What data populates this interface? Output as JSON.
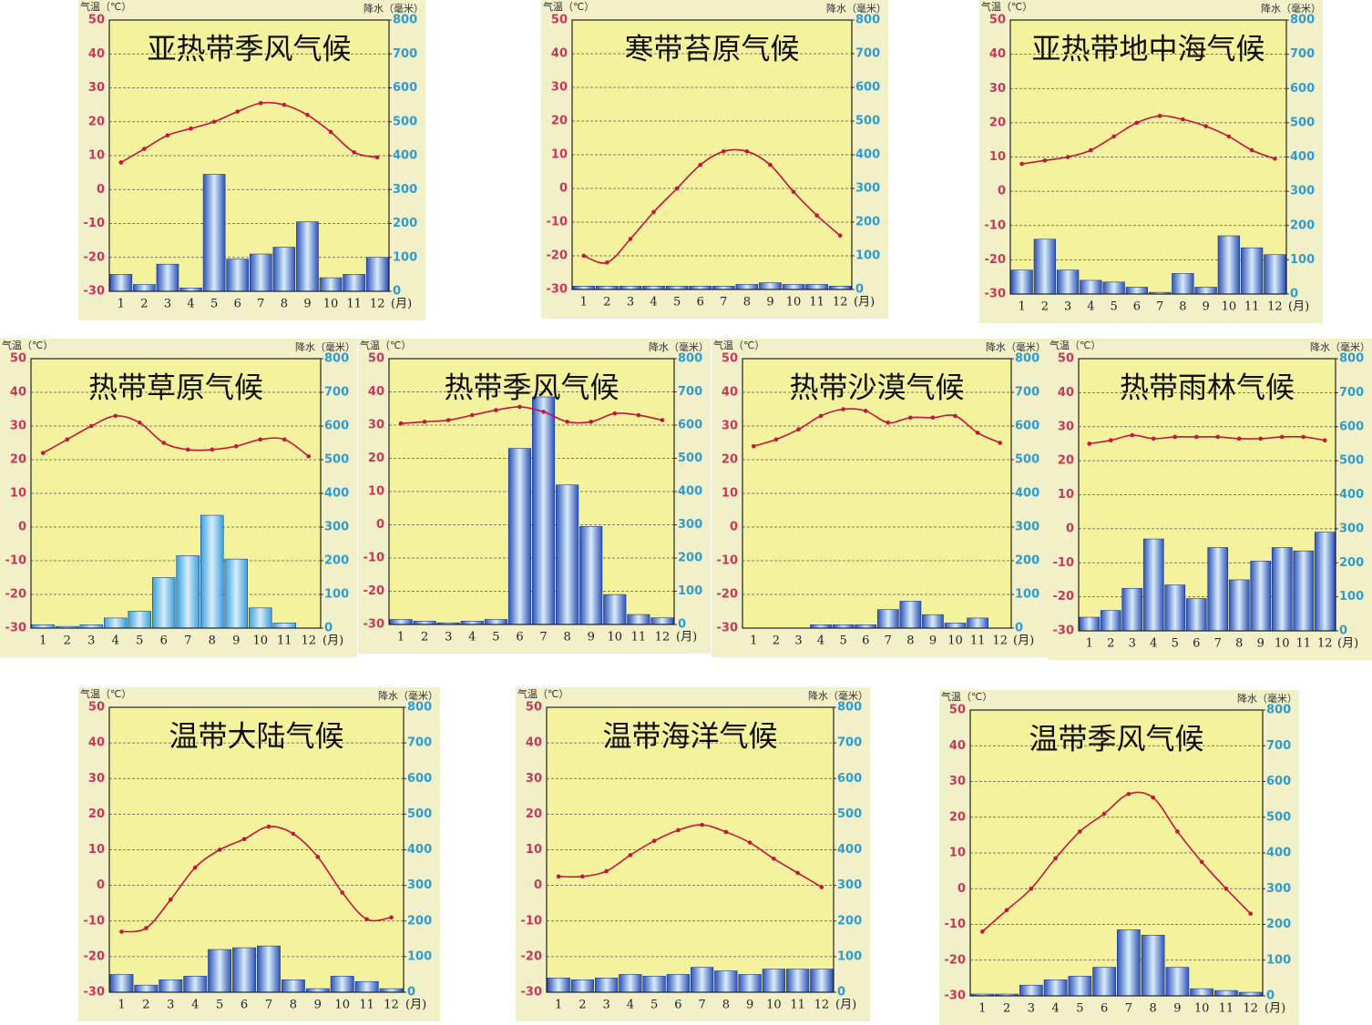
{
  "chart_data": [
    {
      "type": "combo",
      "title": "亚热带季风气候",
      "y_label": "气温（℃）",
      "y2_label": "降水（毫米）",
      "x_unit": "(月)",
      "categories": [
        "1",
        "2",
        "3",
        "4",
        "5",
        "6",
        "7",
        "8",
        "9",
        "10",
        "11",
        "12"
      ],
      "ylim": [
        -30,
        50
      ],
      "yticks": [
        -30,
        -20,
        -10,
        0,
        10,
        20,
        30,
        40,
        50
      ],
      "y2lim": [
        0,
        800
      ],
      "y2ticks": [
        0,
        100,
        200,
        300,
        400,
        500,
        600,
        700,
        800
      ],
      "grid": true,
      "series": [
        {
          "type": "line",
          "color": "#c8143c",
          "values": [
            8,
            12,
            16,
            18,
            20,
            23,
            25.5,
            25,
            22,
            17,
            11,
            9.5
          ]
        },
        {
          "type": "bar",
          "axis": "y2",
          "color": "#2d52b8",
          "values": [
            50,
            20,
            80,
            10,
            345,
            95,
            110,
            130,
            205,
            40,
            50,
            100
          ]
        }
      ]
    },
    {
      "type": "combo",
      "title": "寒带苔原气候",
      "y_label": "气温（℃）",
      "y2_label": "降水（毫米）",
      "x_unit": "(月)",
      "categories": [
        "1",
        "2",
        "3",
        "4",
        "5",
        "6",
        "7",
        "8",
        "9",
        "10",
        "11",
        "12"
      ],
      "ylim": [
        -30,
        50
      ],
      "yticks": [
        -30,
        -20,
        -10,
        0,
        10,
        20,
        30,
        40,
        50
      ],
      "y2lim": [
        0,
        800
      ],
      "y2ticks": [
        0,
        100,
        200,
        300,
        400,
        500,
        600,
        700,
        800
      ],
      "grid": true,
      "series": [
        {
          "type": "line",
          "color": "#c8143c",
          "values": [
            -20,
            -22,
            -15,
            -7,
            0,
            7,
            11,
            11,
            7,
            -1,
            -8,
            -14
          ]
        },
        {
          "type": "bar",
          "axis": "y2",
          "color": "#2d52b8",
          "values": [
            10,
            10,
            10,
            10,
            10,
            10,
            10,
            15,
            20,
            15,
            15,
            10
          ]
        }
      ]
    },
    {
      "type": "combo",
      "title": "亚热带地中海气候",
      "y_label": "气温（℃）",
      "y2_label": "降水（毫米）",
      "x_unit": "(月)",
      "categories": [
        "1",
        "2",
        "3",
        "4",
        "5",
        "6",
        "7",
        "8",
        "9",
        "10",
        "11",
        "12"
      ],
      "ylim": [
        -30,
        50
      ],
      "yticks": [
        -30,
        -20,
        -10,
        0,
        10,
        20,
        30,
        40,
        50
      ],
      "y2lim": [
        0,
        800
      ],
      "y2ticks": [
        0,
        100,
        200,
        300,
        400,
        500,
        600,
        700,
        800
      ],
      "grid": true,
      "series": [
        {
          "type": "line",
          "color": "#c8143c",
          "values": [
            8,
            9,
            10,
            12,
            16,
            20,
            22,
            21,
            19,
            16,
            12,
            9.5
          ]
        },
        {
          "type": "bar",
          "axis": "y2",
          "color": "#2d52b8",
          "values": [
            70,
            160,
            70,
            40,
            35,
            20,
            5,
            60,
            20,
            170,
            135,
            115
          ]
        }
      ]
    },
    {
      "type": "combo",
      "title": "热带草原气候",
      "y_label": "气温（℃）",
      "y2_label": "降水（毫米）",
      "x_unit": "(月)",
      "categories": [
        "1",
        "2",
        "3",
        "4",
        "5",
        "6",
        "7",
        "8",
        "9",
        "10",
        "11",
        "12"
      ],
      "ylim": [
        -30,
        50
      ],
      "yticks": [
        -30,
        -20,
        -10,
        0,
        10,
        20,
        30,
        40,
        50
      ],
      "y2lim": [
        0,
        800
      ],
      "y2ticks": [
        0,
        100,
        200,
        300,
        400,
        500,
        600,
        700,
        800
      ],
      "grid": true,
      "series": [
        {
          "type": "line",
          "color": "#c8143c",
          "values": [
            22,
            26,
            30,
            33,
            31,
            25,
            23,
            23,
            24,
            26,
            26,
            21
          ]
        },
        {
          "type": "bar",
          "axis": "y2",
          "color": "#38a0dc",
          "values": [
            10,
            5,
            10,
            30,
            50,
            150,
            215,
            335,
            205,
            60,
            15,
            0
          ]
        }
      ]
    },
    {
      "type": "combo",
      "title": "热带季风气候",
      "y_label": "气温（℃）",
      "y2_label": "降水（毫米）",
      "x_unit": "(月)",
      "categories": [
        "1",
        "2",
        "3",
        "4",
        "5",
        "6",
        "7",
        "8",
        "9",
        "10",
        "11",
        "12"
      ],
      "ylim": [
        -30,
        50
      ],
      "yticks": [
        -30,
        -20,
        -10,
        0,
        10,
        20,
        30,
        40,
        50
      ],
      "y2lim": [
        0,
        800
      ],
      "y2ticks": [
        0,
        100,
        200,
        300,
        400,
        500,
        600,
        700,
        800
      ],
      "grid": true,
      "series": [
        {
          "type": "line",
          "color": "#c8143c",
          "values": [
            30.5,
            31,
            31.5,
            33,
            34.5,
            35.5,
            34,
            31,
            31,
            33.5,
            33,
            31.5
          ]
        },
        {
          "type": "bar",
          "axis": "y2",
          "color": "#2d52b8",
          "values": [
            15,
            10,
            5,
            10,
            15,
            530,
            685,
            420,
            295,
            90,
            30,
            20
          ]
        }
      ]
    },
    {
      "type": "combo",
      "title": "热带沙漠气候",
      "y_label": "气温（℃）",
      "y2_label": "降水（毫米）",
      "x_unit": "(月)",
      "categories": [
        "1",
        "2",
        "3",
        "4",
        "5",
        "6",
        "7",
        "8",
        "9",
        "10",
        "11",
        "12"
      ],
      "ylim": [
        -30,
        50
      ],
      "yticks": [
        -30,
        -20,
        -10,
        0,
        10,
        20,
        30,
        40,
        50
      ],
      "y2lim": [
        0,
        800
      ],
      "y2ticks": [
        0,
        100,
        200,
        300,
        400,
        500,
        600,
        700,
        800
      ],
      "grid": true,
      "series": [
        {
          "type": "line",
          "color": "#c8143c",
          "values": [
            24,
            26,
            29,
            33,
            35,
            34.5,
            31,
            32.5,
            32.5,
            33,
            28,
            25
          ]
        },
        {
          "type": "bar",
          "axis": "y2",
          "color": "#2d52b8",
          "values": [
            0,
            0,
            0,
            10,
            10,
            10,
            55,
            80,
            40,
            15,
            30,
            0
          ]
        }
      ]
    },
    {
      "type": "combo",
      "title": "热带雨林气候",
      "y_label": "气温（℃）",
      "y2_label": "降水（毫米）",
      "x_unit": "(月)",
      "categories": [
        "1",
        "2",
        "3",
        "4",
        "5",
        "6",
        "7",
        "8",
        "9",
        "10",
        "11",
        "12"
      ],
      "ylim": [
        -30,
        50
      ],
      "yticks": [
        -30,
        -20,
        -10,
        0,
        10,
        20,
        30,
        40,
        50
      ],
      "y2lim": [
        0,
        800
      ],
      "y2ticks": [
        0,
        100,
        200,
        300,
        400,
        500,
        600,
        700,
        800
      ],
      "grid": true,
      "series": [
        {
          "type": "line",
          "color": "#c8143c",
          "values": [
            25,
            26,
            27.5,
            26.5,
            27,
            27,
            27,
            26.5,
            26.5,
            27,
            27,
            26
          ]
        },
        {
          "type": "bar",
          "axis": "y2",
          "color": "#2d52b8",
          "values": [
            40,
            60,
            125,
            270,
            135,
            95,
            245,
            150,
            205,
            245,
            235,
            290
          ]
        }
      ]
    },
    {
      "type": "combo",
      "title": "温带大陆气候",
      "y_label": "气温（℃）",
      "y2_label": "降水（毫米）",
      "x_unit": "(月)",
      "categories": [
        "1",
        "2",
        "3",
        "4",
        "5",
        "6",
        "7",
        "8",
        "9",
        "10",
        "11",
        "12"
      ],
      "ylim": [
        -30,
        50
      ],
      "yticks": [
        -30,
        -20,
        -10,
        0,
        10,
        20,
        30,
        40,
        50
      ],
      "y2lim": [
        0,
        800
      ],
      "y2ticks": [
        0,
        100,
        200,
        300,
        400,
        500,
        600,
        700,
        800
      ],
      "grid": true,
      "series": [
        {
          "type": "line",
          "color": "#c8143c",
          "values": [
            -13,
            -12,
            -4,
            5,
            10,
            13,
            16.5,
            14.5,
            8,
            -2,
            -9.5,
            -9
          ]
        },
        {
          "type": "bar",
          "axis": "y2",
          "color": "#2d52b8",
          "values": [
            50,
            20,
            35,
            45,
            120,
            125,
            130,
            35,
            10,
            45,
            30,
            10
          ]
        }
      ]
    },
    {
      "type": "combo",
      "title": "温带海洋气候",
      "y_label": "气温（℃）",
      "y2_label": "降水（毫米）",
      "x_unit": "(月)",
      "categories": [
        "1",
        "2",
        "3",
        "4",
        "5",
        "6",
        "7",
        "8",
        "9",
        "10",
        "11",
        "12"
      ],
      "ylim": [
        -30,
        50
      ],
      "yticks": [
        -30,
        -20,
        -10,
        0,
        10,
        20,
        30,
        40,
        50
      ],
      "y2lim": [
        0,
        800
      ],
      "y2ticks": [
        0,
        100,
        200,
        300,
        400,
        500,
        600,
        700,
        800
      ],
      "grid": true,
      "series": [
        {
          "type": "line",
          "color": "#c8143c",
          "values": [
            2.5,
            2.5,
            4,
            8.5,
            12.5,
            15.5,
            17,
            15,
            12,
            7.5,
            3.5,
            -0.5
          ]
        },
        {
          "type": "bar",
          "axis": "y2",
          "color": "#2d52b8",
          "values": [
            40,
            35,
            40,
            50,
            45,
            50,
            70,
            60,
            50,
            65,
            65,
            65
          ]
        }
      ]
    },
    {
      "type": "combo",
      "title": "温带季风气候",
      "y_label": "气温（℃）",
      "y2_label": "降水（毫米）",
      "x_unit": "(月)",
      "categories": [
        "1",
        "2",
        "3",
        "4",
        "5",
        "6",
        "7",
        "8",
        "9",
        "10",
        "11",
        "12"
      ],
      "ylim": [
        -30,
        50
      ],
      "yticks": [
        -30,
        -20,
        -10,
        0,
        10,
        20,
        30,
        40,
        50
      ],
      "y2lim": [
        0,
        800
      ],
      "y2ticks": [
        0,
        100,
        200,
        300,
        400,
        500,
        600,
        700,
        800
      ],
      "grid": true,
      "series": [
        {
          "type": "line",
          "color": "#c8143c",
          "values": [
            -12,
            -6,
            0,
            8.5,
            16,
            21,
            26.5,
            25.5,
            16,
            7.5,
            0,
            -7
          ]
        },
        {
          "type": "bar",
          "axis": "y2",
          "color": "#2d52b8",
          "values": [
            5,
            5,
            30,
            45,
            55,
            80,
            185,
            170,
            80,
            20,
            15,
            10
          ]
        }
      ]
    }
  ]
}
